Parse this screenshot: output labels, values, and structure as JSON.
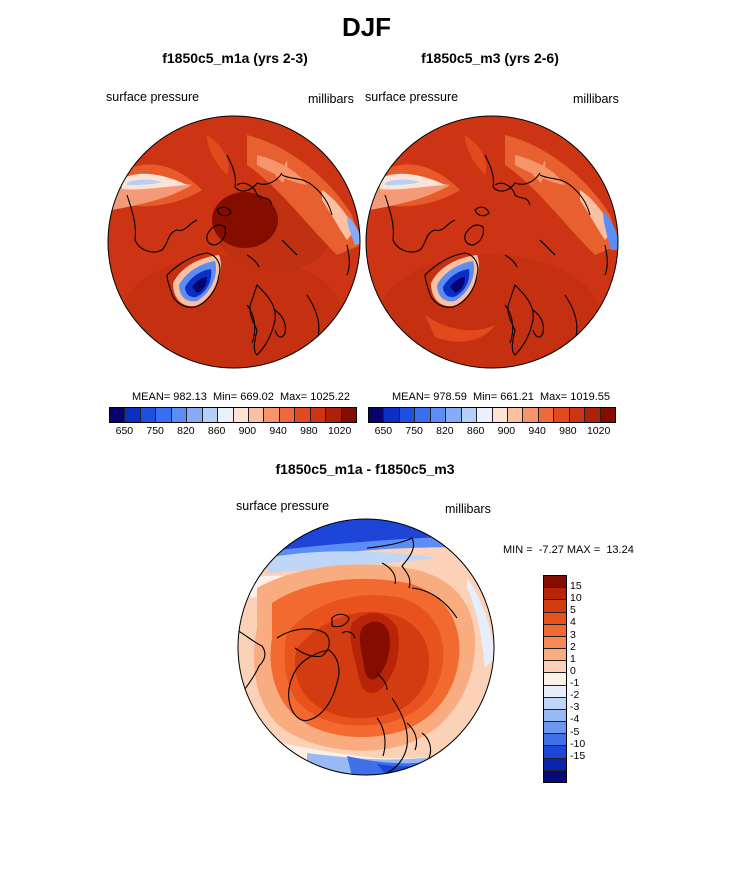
{
  "title": "DJF",
  "panels": [
    {
      "title": "f1850c5_m1a (yrs 2-3)",
      "left_label": "surface pressure",
      "right_label": "millibars",
      "stats": "MEAN= 982.13  Min= 669.02  Max= 1025.22"
    },
    {
      "title": "f1850c5_m3 (yrs 2-6)",
      "left_label": "surface pressure",
      "right_label": "millibars",
      "stats": "MEAN= 978.59  Min= 661.21  Max= 1019.55"
    }
  ],
  "colorbar_top": {
    "colors": [
      "#08046e",
      "#0a2fc4",
      "#1c50e0",
      "#3a6ef0",
      "#5b8df5",
      "#86acf7",
      "#b6cff7",
      "#ebf1fb",
      "#fde3d6",
      "#fbc0a2",
      "#f7946a",
      "#ee6a3c",
      "#e24a1d",
      "#cc3413",
      "#aa2208",
      "#850d00"
    ],
    "labels": [
      "650",
      "750",
      "820",
      "860",
      "900",
      "940",
      "980",
      "1020"
    ]
  },
  "diff_panel": {
    "title": "f1850c5_m1a - f1850c5_m3",
    "left_label": "surface pressure",
    "right_label": "millibars",
    "stats": "MIN =  -7.27 MAX =  13.24"
  },
  "colorbar_diff": {
    "colors": [
      "#850d00",
      "#b82408",
      "#d23c10",
      "#e8521c",
      "#f26a30",
      "#f78a52",
      "#f9ac80",
      "#fbd1b8",
      "#fdf0e6",
      "#e5eefa",
      "#c0d6f6",
      "#98b9f3",
      "#6d97ef",
      "#3f70e8",
      "#1d46d8",
      "#0a24b0",
      "#080a78"
    ],
    "labels": [
      "15",
      "10",
      "5",
      "4",
      "3",
      "2",
      "1",
      "0",
      "-1",
      "-2",
      "-3",
      "-4",
      "-5",
      "-10",
      "-15"
    ]
  }
}
